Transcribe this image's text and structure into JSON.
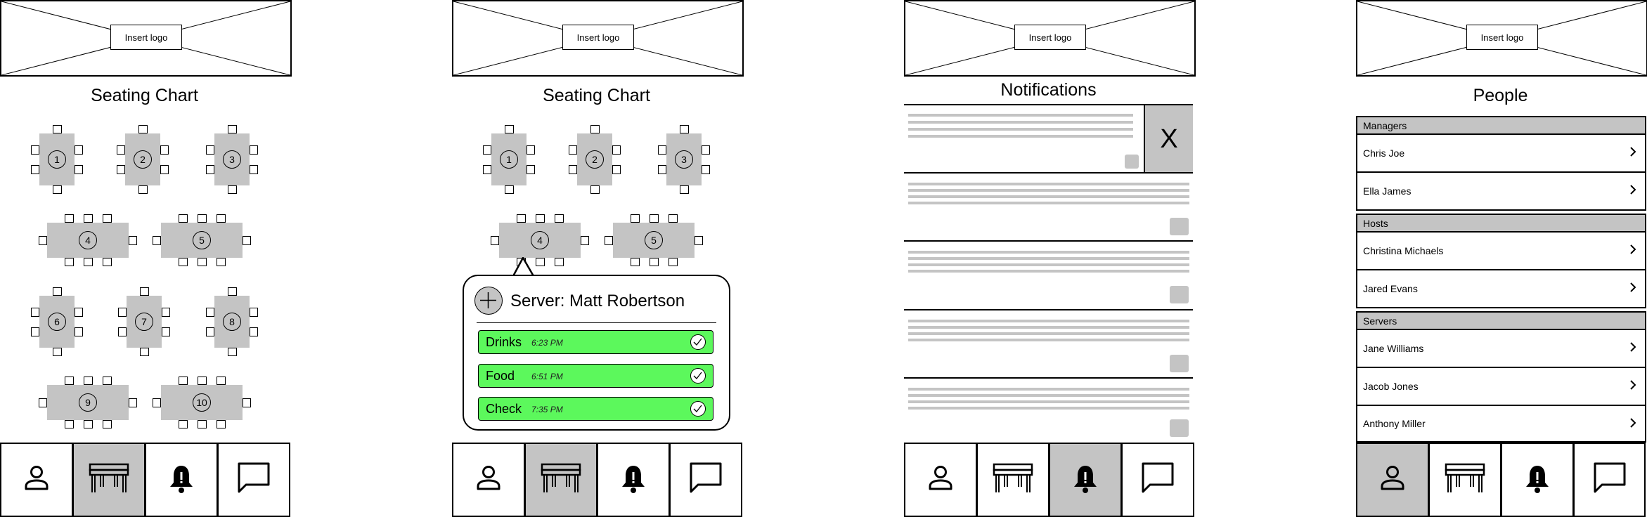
{
  "logo_text": "Insert logo",
  "screen1": {
    "title": "Seating Chart",
    "tables": [
      "1",
      "2",
      "3",
      "4",
      "5",
      "6",
      "7",
      "8",
      "9",
      "10"
    ]
  },
  "screen2": {
    "title": "Seating Chart",
    "tables": [
      "1",
      "2",
      "3",
      "4",
      "5"
    ],
    "popup": {
      "server": "Server: Matt Robertson",
      "tasks": [
        {
          "name": "Drinks",
          "time": "6:23 PM"
        },
        {
          "name": "Food",
          "time": "6:51 PM"
        },
        {
          "name": "Check",
          "time": "7:35 PM"
        }
      ]
    }
  },
  "screen3": {
    "title": "Notifications",
    "dismiss": "X"
  },
  "screen4": {
    "title": "People",
    "sections": [
      {
        "label": "Managers",
        "people": [
          "Chris Joe",
          "Ella James"
        ]
      },
      {
        "label": "Hosts",
        "people": [
          "Christina Michaels",
          "Jared Evans"
        ]
      },
      {
        "label": "Servers",
        "people": [
          "Jane Williams",
          "Jacob Jones",
          "Anthony Miller"
        ]
      }
    ]
  },
  "nav_icons": [
    "person-icon",
    "table-icon",
    "bell-icon",
    "chat-icon"
  ],
  "colors": {
    "highlight": "#c4c4c4",
    "done": "#5cf85c"
  }
}
